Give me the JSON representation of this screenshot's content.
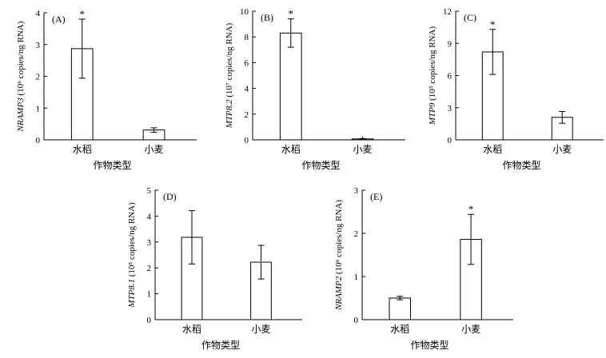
{
  "chart_data": [
    {
      "type": "bar",
      "panel_label": "(A)",
      "categories": [
        "水稻",
        "小麦"
      ],
      "values": [
        2.87,
        0.31
      ],
      "errors": [
        0.93,
        0.07
      ],
      "significance": [
        "*",
        ""
      ],
      "ylim": [
        0,
        4
      ],
      "yticks": [
        "0",
        "1",
        "2",
        "3",
        "4"
      ],
      "ylabel_gene": "NRAMP3",
      "ylabel_unit": " (10⁶ copies/ng RNA)",
      "xlabel": "作物类型"
    },
    {
      "type": "bar",
      "panel_label": "(B)",
      "categories": [
        "水稻",
        "小麦"
      ],
      "values": [
        8.3,
        0.07
      ],
      "errors": [
        1.1,
        0.03
      ],
      "significance": [
        "*",
        ""
      ],
      "ylim": [
        0,
        10
      ],
      "yticks": [
        "0",
        "2",
        "4",
        "6",
        "8",
        "10"
      ],
      "ylabel_gene": "MTP8.2",
      "ylabel_unit": " (10⁷ copies/ng RNA)",
      "xlabel": "作物类型"
    },
    {
      "type": "bar",
      "panel_label": "(C)",
      "categories": [
        "水稻",
        "小麦"
      ],
      "values": [
        8.2,
        2.1
      ],
      "errors": [
        2.1,
        0.55
      ],
      "significance": [
        "*",
        ""
      ],
      "ylim": [
        0,
        12
      ],
      "yticks": [
        "0",
        "3",
        "6",
        "9",
        "12"
      ],
      "ylabel_gene": "MTP9",
      "ylabel_unit": " (10⁵ copies/ng RNA)",
      "xlabel": "作物类型"
    },
    {
      "type": "bar",
      "panel_label": "(D)",
      "categories": [
        "水稻",
        "小麦"
      ],
      "values": [
        3.18,
        2.22
      ],
      "errors": [
        1.03,
        0.65
      ],
      "significance": [
        "",
        ""
      ],
      "ylim": [
        0,
        5
      ],
      "yticks": [
        "0",
        "1",
        "2",
        "3",
        "4",
        "5"
      ],
      "ylabel_gene": "MTP8.1",
      "ylabel_unit": " (10⁵ copies/ng RNA)",
      "xlabel": "作物类型"
    },
    {
      "type": "bar",
      "panel_label": "(E)",
      "categories": [
        "水稻",
        "小麦"
      ],
      "values": [
        0.5,
        1.86
      ],
      "errors": [
        0.04,
        0.58
      ],
      "significance": [
        "",
        "*"
      ],
      "ylim": [
        0,
        3
      ],
      "yticks": [
        "0",
        "1",
        "2",
        "3"
      ],
      "ylabel_gene": "NRAMP2",
      "ylabel_unit": " (10⁶ copies/ng RNA)",
      "xlabel": "作物类型"
    }
  ]
}
